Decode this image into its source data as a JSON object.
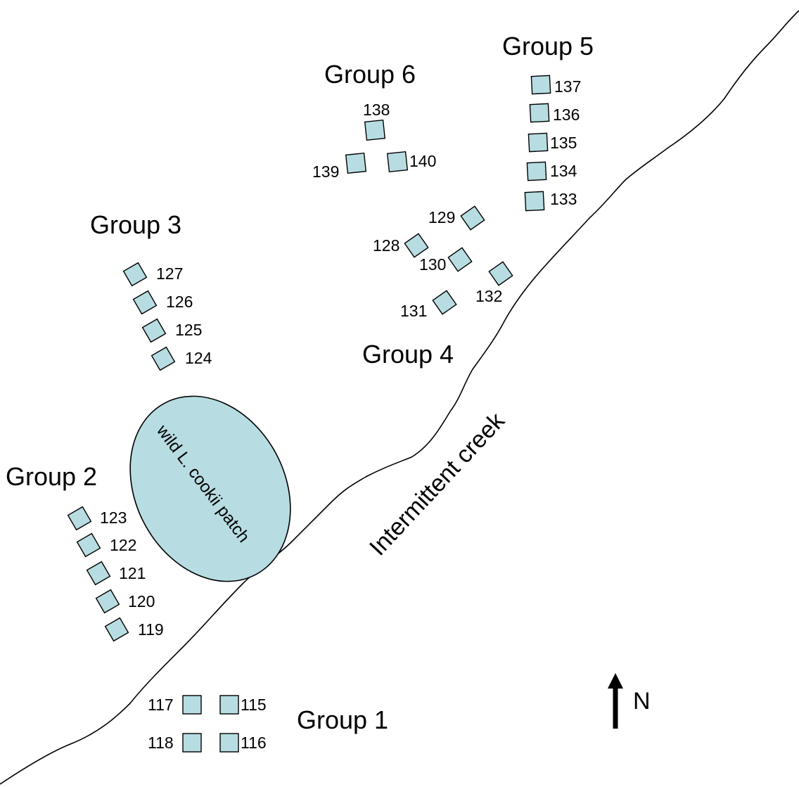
{
  "groups": {
    "g1": "Group 1",
    "g2": "Group 2",
    "g3": "Group 3",
    "g4": "Group 4",
    "g5": "Group 5",
    "g6": "Group 6"
  },
  "creek_label": "Intermittent creek",
  "patch_label": "wild L. cookii patch",
  "north_label": "N",
  "colors": {
    "plot_fill": "#b7dde2",
    "patch_fill": "#b7dde2",
    "line": "#000000"
  },
  "icons": {
    "north": "north-arrow-icon"
  },
  "plots": {
    "p115": "115",
    "p116": "116",
    "p117": "117",
    "p118": "118",
    "p119": "119",
    "p120": "120",
    "p121": "121",
    "p122": "122",
    "p123": "123",
    "p124": "124",
    "p125": "125",
    "p126": "126",
    "p127": "127",
    "p128": "128",
    "p129": "129",
    "p130": "130",
    "p131": "131",
    "p132": "132",
    "p133": "133",
    "p134": "134",
    "p135": "135",
    "p136": "136",
    "p137": "137",
    "p138": "138",
    "p139": "139",
    "p140": "140"
  }
}
